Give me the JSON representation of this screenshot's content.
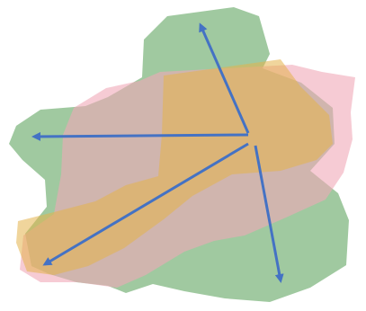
{
  "diagram": {
    "layers": [
      {
        "id": "green",
        "color": "#8fbf8f",
        "opacity": 0.85
      },
      {
        "id": "pink",
        "color": "#f0a9b8",
        "opacity": 0.6
      },
      {
        "id": "yellow",
        "color": "#e4b24a",
        "opacity": 0.55
      }
    ],
    "arrows": {
      "color": "#4472c4",
      "count": 4
    }
  }
}
